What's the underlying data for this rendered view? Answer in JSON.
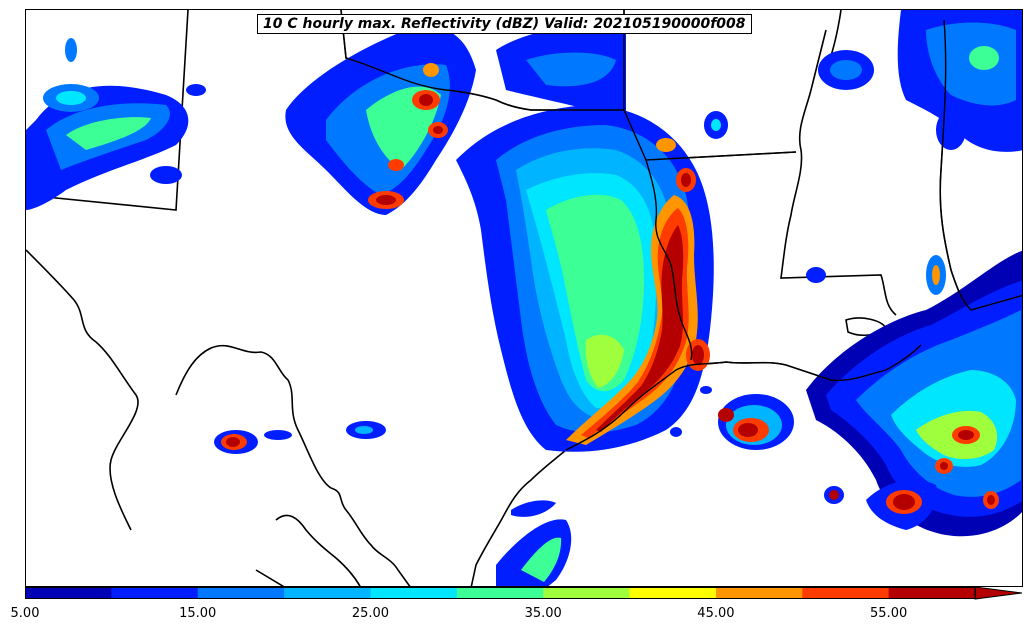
{
  "title": "10 C hourly max. Reflectivity (dBZ) Valid: 202105190000f008",
  "colorbar": {
    "labels": [
      "5.00",
      "15.00",
      "25.00",
      "35.00",
      "45.00",
      "55.00"
    ],
    "colors": [
      "#0000b4",
      "#001eff",
      "#0078ff",
      "#00b4ff",
      "#00e6ff",
      "#3cff96",
      "#a0ff3c",
      "#ffff00",
      "#ff9600",
      "#ff3c00",
      "#b40000"
    ],
    "extend": "max"
  },
  "legend_colors": {
    "dark_blue": "#0000b4",
    "blue": "#001eff",
    "light_blue": "#0078ff",
    "sky": "#00b4ff",
    "cyan": "#00e6ff",
    "sea_green": "#3cff96",
    "yellow_green": "#a0ff3c",
    "yellow": "#ffff00",
    "orange": "#ff9600",
    "red": "#ff3c00",
    "dark_red": "#b40000"
  }
}
